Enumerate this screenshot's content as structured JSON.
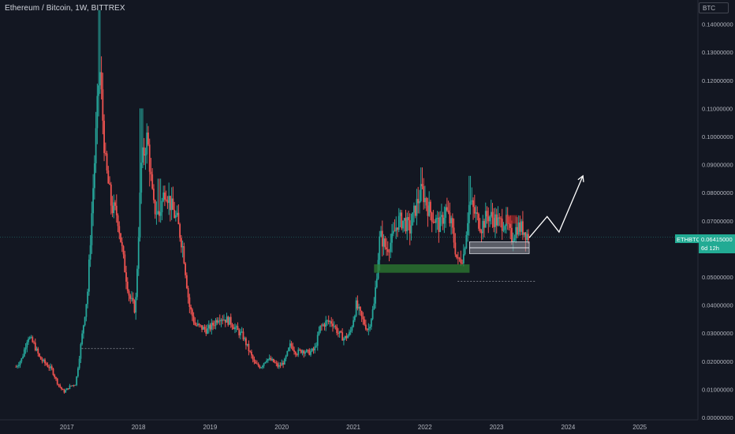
{
  "header": {
    "title": "Ethereum / Bitcoin, 1W, BITTREX",
    "currency": "BTC"
  },
  "price_axis": {
    "ticks": [
      "0.14000000",
      "0.13000000",
      "0.12000000",
      "0.11000000",
      "0.10000000",
      "0.09000000",
      "0.08000000",
      "0.07000000",
      "0.06000000",
      "0.05000000",
      "0.04000000",
      "0.03000000",
      "0.02000000",
      "0.01000000",
      "0.00000000"
    ]
  },
  "time_axis": {
    "ticks": [
      "2017",
      "2018",
      "2019",
      "2020",
      "2021",
      "2022",
      "2023",
      "2024",
      "2025"
    ]
  },
  "last_price": {
    "symbol": "ETHBTC",
    "value": "0.06415000",
    "countdown": "6d 12h"
  },
  "colors": {
    "background": "#131722",
    "up": "#26a69a",
    "down": "#ef5350",
    "last_price_tag": "#22ab94",
    "support_zone": "#2e7d32",
    "current_zone": "#9598a1",
    "resistance_zone": "#c62828"
  },
  "chart_data": {
    "type": "candlestick",
    "title": "Ethereum / Bitcoin, 1W, BITTREX",
    "ylim": [
      0,
      0.145
    ],
    "xlim": [
      "2016-04",
      "2025-12"
    ],
    "grid": false,
    "weekly_close_path": [
      [
        "2016-04",
        0.018
      ],
      [
        "2016-05",
        0.021
      ],
      [
        "2016-06",
        0.029
      ],
      [
        "2016-07",
        0.026
      ],
      [
        "2016-08",
        0.021
      ],
      [
        "2016-09",
        0.019
      ],
      [
        "2016-10",
        0.017
      ],
      [
        "2016-11",
        0.012
      ],
      [
        "2016-12",
        0.009
      ],
      [
        "2017-01",
        0.011
      ],
      [
        "2017-02",
        0.012
      ],
      [
        "2017-03",
        0.028
      ],
      [
        "2017-04",
        0.045
      ],
      [
        "2017-05",
        0.085
      ],
      [
        "2017-06",
        0.125
      ],
      [
        "2017-07",
        0.09
      ],
      [
        "2017-08",
        0.075
      ],
      [
        "2017-09",
        0.072
      ],
      [
        "2017-10",
        0.056
      ],
      [
        "2017-11",
        0.043
      ],
      [
        "2017-12",
        0.038
      ],
      [
        "2018-01",
        0.09
      ],
      [
        "2018-02",
        0.1
      ],
      [
        "2018-03",
        0.075
      ],
      [
        "2018-04",
        0.072
      ],
      [
        "2018-05",
        0.082
      ],
      [
        "2018-06",
        0.075
      ],
      [
        "2018-07",
        0.07
      ],
      [
        "2018-08",
        0.06
      ],
      [
        "2018-09",
        0.04
      ],
      [
        "2018-10",
        0.033
      ],
      [
        "2018-11",
        0.032
      ],
      [
        "2018-12",
        0.031
      ],
      [
        "2019-01",
        0.033
      ],
      [
        "2019-02",
        0.036
      ],
      [
        "2019-03",
        0.035
      ],
      [
        "2019-04",
        0.034
      ],
      [
        "2019-05",
        0.031
      ],
      [
        "2019-06",
        0.029
      ],
      [
        "2019-07",
        0.024
      ],
      [
        "2019-08",
        0.019
      ],
      [
        "2019-09",
        0.018
      ],
      [
        "2019-10",
        0.021
      ],
      [
        "2019-11",
        0.02
      ],
      [
        "2019-12",
        0.018
      ],
      [
        "2020-01",
        0.02
      ],
      [
        "2020-02",
        0.026
      ],
      [
        "2020-03",
        0.023
      ],
      [
        "2020-04",
        0.024
      ],
      [
        "2020-05",
        0.023
      ],
      [
        "2020-06",
        0.024
      ],
      [
        "2020-07",
        0.032
      ],
      [
        "2020-08",
        0.034
      ],
      [
        "2020-09",
        0.034
      ],
      [
        "2020-10",
        0.03
      ],
      [
        "2020-11",
        0.028
      ],
      [
        "2020-12",
        0.03
      ],
      [
        "2021-01",
        0.04
      ],
      [
        "2021-02",
        0.035
      ],
      [
        "2021-03",
        0.031
      ],
      [
        "2021-04",
        0.04
      ],
      [
        "2021-05",
        0.065
      ],
      [
        "2021-06",
        0.06
      ],
      [
        "2021-07",
        0.063
      ],
      [
        "2021-08",
        0.07
      ],
      [
        "2021-09",
        0.07
      ],
      [
        "2021-10",
        0.067
      ],
      [
        "2021-11",
        0.075
      ],
      [
        "2021-12",
        0.081
      ],
      [
        "2022-01",
        0.075
      ],
      [
        "2022-02",
        0.071
      ],
      [
        "2022-03",
        0.068
      ],
      [
        "2022-04",
        0.074
      ],
      [
        "2022-05",
        0.068
      ],
      [
        "2022-06",
        0.055
      ],
      [
        "2022-07",
        0.058
      ],
      [
        "2022-08",
        0.077
      ],
      [
        "2022-09",
        0.072
      ],
      [
        "2022-10",
        0.068
      ],
      [
        "2022-11",
        0.072
      ],
      [
        "2022-12",
        0.071
      ],
      [
        "2023-01",
        0.069
      ],
      [
        "2023-02",
        0.07
      ],
      [
        "2023-03",
        0.064
      ],
      [
        "2023-04",
        0.068
      ],
      [
        "2023-05",
        0.067
      ],
      [
        "2023-06",
        0.0641
      ]
    ],
    "spike_highs": [
      [
        "2017-06",
        0.145
      ],
      [
        "2018-01",
        0.11
      ],
      [
        "2018-04",
        0.085
      ],
      [
        "2021-12",
        0.089
      ],
      [
        "2022-08",
        0.086
      ]
    ],
    "zones": [
      {
        "kind": "support",
        "x": [
          "2021-04",
          "2022-08"
        ],
        "y": [
          0.0515,
          0.0545
        ]
      },
      {
        "kind": "current",
        "x": [
          "2022-08",
          "2023-06"
        ],
        "y": [
          0.0583,
          0.0625
        ]
      },
      {
        "kind": "resistance",
        "x": [
          "2023-02",
          "2023-04"
        ],
        "y": [
          0.069,
          0.072
        ]
      }
    ],
    "dotted_lines": [
      {
        "x": [
          "2017-03",
          "2017-12"
        ],
        "y": 0.0245
      },
      {
        "x": [
          "2022-06",
          "2023-07"
        ],
        "y": 0.0485
      }
    ],
    "projection": [
      [
        "2023-06",
        0.064
      ],
      [
        "2023-09",
        0.0715
      ],
      [
        "2023-11",
        0.066
      ],
      [
        "2024-03",
        0.086
      ]
    ]
  }
}
